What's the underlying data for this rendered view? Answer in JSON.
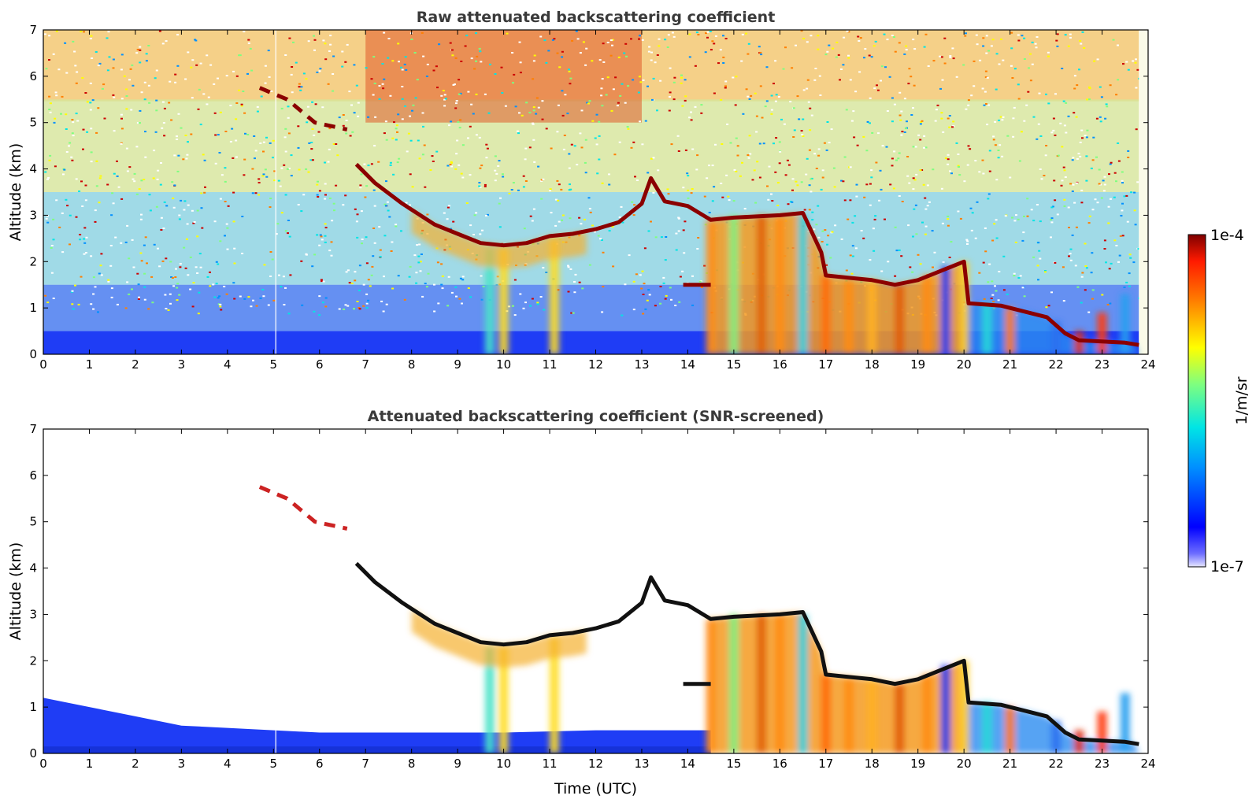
{
  "chart_data": [
    {
      "type": "heatmap",
      "title": "Raw attenuated backscattering coefficient",
      "xlabel": "",
      "ylabel": "Altitude (km)",
      "xlim": [
        0,
        24
      ],
      "ylim": [
        0,
        7
      ],
      "xticks": [
        "0",
        "1",
        "2",
        "3",
        "4",
        "5",
        "6",
        "7",
        "8",
        "9",
        "10",
        "11",
        "12",
        "13",
        "14",
        "15",
        "16",
        "17",
        "18",
        "19",
        "20",
        "21",
        "22",
        "23",
        "24"
      ],
      "yticks": [
        "0",
        "1",
        "2",
        "3",
        "4",
        "5",
        "6",
        "7"
      ],
      "data_end_time": 23.8,
      "cloud_layer": {
        "points": [
          [
            4.7,
            5.75
          ],
          [
            5.3,
            5.5
          ],
          [
            5.9,
            5.0
          ],
          [
            6.6,
            4.85
          ],
          [
            6.8,
            4.1
          ],
          [
            7.2,
            3.7
          ],
          [
            7.8,
            3.25
          ],
          [
            8.5,
            2.8
          ],
          [
            9.0,
            2.6
          ],
          [
            9.5,
            2.4
          ],
          [
            10.0,
            2.35
          ],
          [
            10.5,
            2.4
          ],
          [
            11.0,
            2.55
          ],
          [
            11.5,
            2.6
          ],
          [
            12.0,
            2.7
          ],
          [
            12.5,
            2.85
          ],
          [
            13.0,
            3.25
          ],
          [
            13.2,
            3.8
          ],
          [
            13.5,
            3.3
          ],
          [
            14.0,
            3.2
          ],
          [
            14.5,
            2.9
          ],
          [
            15.0,
            2.95
          ],
          [
            16.0,
            3.0
          ],
          [
            16.5,
            3.05
          ],
          [
            16.9,
            2.2
          ],
          [
            17.0,
            1.7
          ],
          [
            17.5,
            1.65
          ],
          [
            18.0,
            1.6
          ],
          [
            18.5,
            1.5
          ],
          [
            19.0,
            1.6
          ],
          [
            19.5,
            1.8
          ],
          [
            20.0,
            2.0
          ],
          [
            20.1,
            1.1
          ],
          [
            20.8,
            1.05
          ],
          [
            21.2,
            0.95
          ],
          [
            21.8,
            0.8
          ],
          [
            22.2,
            0.45
          ],
          [
            22.5,
            0.3
          ],
          [
            23.5,
            0.25
          ],
          [
            23.8,
            0.2
          ]
        ],
        "low_segment": [
          [
            13.9,
            1.5
          ],
          [
            14.5,
            1.5
          ]
        ]
      },
      "rain_shafts": [
        [
          9.7,
          2.3
        ],
        [
          10.0,
          2.3
        ],
        [
          11.1,
          2.5
        ],
        [
          14.5,
          2.9
        ],
        [
          15.0,
          3.0
        ],
        [
          15.6,
          3.0
        ],
        [
          16.0,
          3.0
        ],
        [
          16.5,
          3.0
        ],
        [
          17.0,
          1.7
        ],
        [
          17.5,
          1.6
        ],
        [
          18.0,
          1.6
        ],
        [
          18.6,
          1.5
        ],
        [
          19.2,
          1.7
        ],
        [
          19.6,
          1.9
        ],
        [
          20.0,
          2.0
        ],
        [
          20.5,
          1.1
        ],
        [
          21.0,
          1.0
        ],
        [
          22.0,
          0.7
        ],
        [
          22.5,
          0.5
        ],
        [
          23.0,
          0.9
        ],
        [
          23.5,
          1.3
        ]
      ]
    },
    {
      "type": "heatmap",
      "title": "Attenuated backscattering coefficient (SNR-screened)",
      "xlabel": "Time (UTC)",
      "ylabel": "Altitude (km)",
      "xlim": [
        0,
        24
      ],
      "ylim": [
        0,
        7
      ],
      "xticks": [
        "0",
        "1",
        "2",
        "3",
        "4",
        "5",
        "6",
        "7",
        "8",
        "9",
        "10",
        "11",
        "12",
        "13",
        "14",
        "15",
        "16",
        "17",
        "18",
        "19",
        "20",
        "21",
        "22",
        "23",
        "24"
      ],
      "yticks": [
        "0",
        "1",
        "2",
        "3",
        "4",
        "5",
        "6",
        "7"
      ],
      "boundary_layer_top": [
        [
          0,
          1.2
        ],
        [
          1,
          1.0
        ],
        [
          2,
          0.8
        ],
        [
          3,
          0.6
        ],
        [
          4,
          0.55
        ],
        [
          5,
          0.5
        ],
        [
          6,
          0.45
        ],
        [
          8,
          0.45
        ],
        [
          10,
          0.45
        ],
        [
          12,
          0.5
        ],
        [
          14,
          0.5
        ],
        [
          14.5,
          0.5
        ]
      ]
    }
  ],
  "colorbar": {
    "label": "1/m/sr",
    "max_label": "1e-4",
    "min_label": "1e-7",
    "scale": "log",
    "range": [
      1e-07,
      0.0001
    ],
    "colormap": "jet"
  }
}
